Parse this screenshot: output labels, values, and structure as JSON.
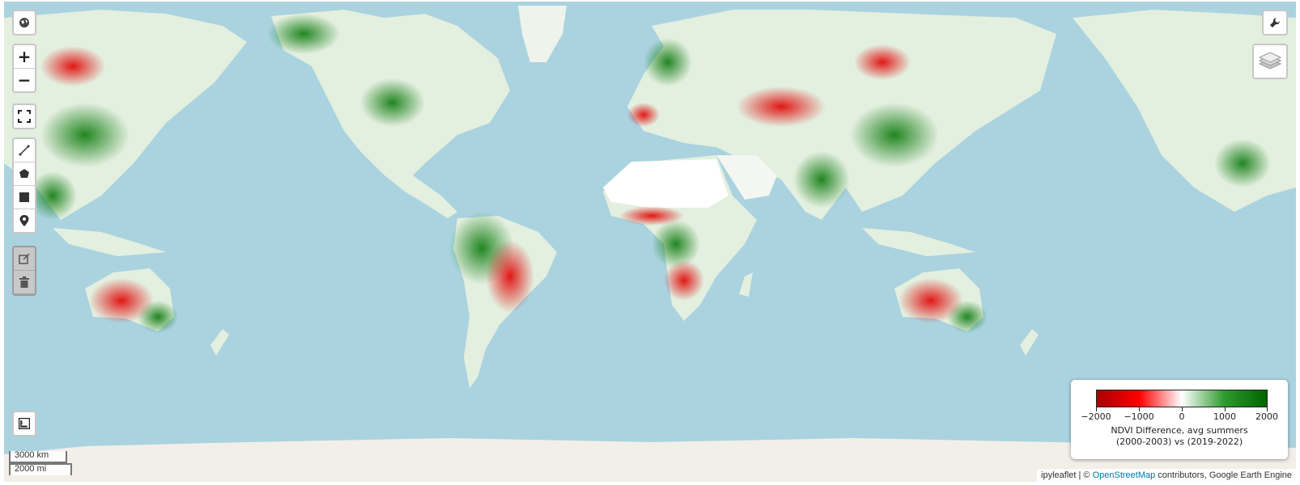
{
  "map": {
    "zoom_in_label": "+",
    "zoom_out_label": "−",
    "basemap_icon": "globe-icon",
    "fullscreen_icon": "fullscreen-icon",
    "draw_tools": [
      "polyline-icon",
      "polygon-icon",
      "rectangle-icon",
      "marker-icon"
    ],
    "edit_tools": [
      "edit-icon",
      "trash-icon"
    ],
    "measure_icon": "ruler-icon",
    "toolbar_icon": "wrench-icon",
    "layers_icon": "layers-icon",
    "colors": {
      "ocean": "#aad3df",
      "land": "#f2efe9",
      "decline": "#ff0000",
      "increase": "#008000"
    }
  },
  "legend": {
    "ticks": [
      "−2000",
      "−1000",
      "0",
      "1000",
      "2000"
    ],
    "title_line1": "NDVI Difference, avg summers",
    "title_line2": "(2000-2003) vs (2019-2022)",
    "colors": [
      "#a80000",
      "#ff0000",
      "#ffffff",
      "#2e9b2e",
      "#006400"
    ]
  },
  "scale": {
    "metric": "3000 km",
    "imperial": "2000 mi"
  },
  "attribution": {
    "prefix": "ipyleaflet | © ",
    "link": "OpenStreetMap",
    "suffix": " contributors, Google Earth Engine"
  }
}
